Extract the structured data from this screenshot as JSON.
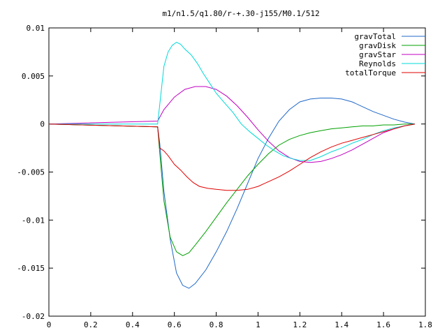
{
  "chart_data": {
    "type": "line",
    "title": "m1/n1.5/q1.80/r-+.30-j155/M0.1/512",
    "xlabel": "",
    "ylabel": "",
    "xlim": [
      0,
      1.8
    ],
    "ylim": [
      -0.02,
      0.01
    ],
    "grid": false,
    "legend_position": "top-right",
    "x_ticks": [
      "0",
      "0.2",
      "0.4",
      "0.6",
      "0.8",
      "1",
      "1.2",
      "1.4",
      "1.6",
      "1.8"
    ],
    "y_ticks": [
      "0.01",
      "0.005",
      "0",
      "-0.005",
      "-0.01",
      "-0.015",
      "-0.02"
    ],
    "series": [
      {
        "name": "gravTotal",
        "color": "#1f68c8",
        "x": [
          0.52,
          0.53,
          0.55,
          0.58,
          0.61,
          0.64,
          0.67,
          0.7,
          0.75,
          0.8,
          0.85,
          0.9,
          0.95,
          1.0,
          1.05,
          1.1,
          1.15,
          1.2,
          1.25,
          1.3,
          1.35,
          1.4,
          1.45,
          1.5,
          1.55,
          1.6,
          1.65,
          1.7,
          1.75
        ],
        "y": [
          -0.0003,
          -0.002,
          -0.007,
          -0.012,
          -0.0155,
          -0.0168,
          -0.0171,
          -0.0166,
          -0.0152,
          -0.0133,
          -0.0112,
          -0.0088,
          -0.0062,
          -0.0036,
          -0.0015,
          0.0003,
          0.0015,
          0.0023,
          0.0026,
          0.0027,
          0.0027,
          0.0026,
          0.0023,
          0.0018,
          0.0013,
          0.0009,
          0.0005,
          0.0002,
          0.0
        ]
      },
      {
        "name": "gravDisk",
        "color": "#00a000",
        "x": [
          0.52,
          0.53,
          0.55,
          0.58,
          0.61,
          0.64,
          0.67,
          0.7,
          0.75,
          0.8,
          0.85,
          0.9,
          0.95,
          1.0,
          1.05,
          1.1,
          1.15,
          1.2,
          1.25,
          1.3,
          1.35,
          1.4,
          1.45,
          1.5,
          1.55,
          1.6,
          1.65,
          1.7,
          1.75
        ],
        "y": [
          -0.0003,
          -0.003,
          -0.008,
          -0.0118,
          -0.0133,
          -0.0137,
          -0.0134,
          -0.0126,
          -0.0112,
          -0.0097,
          -0.0082,
          -0.0068,
          -0.0054,
          -0.0042,
          -0.0031,
          -0.0022,
          -0.0016,
          -0.0012,
          -0.0009,
          -0.0007,
          -0.0005,
          -0.0004,
          -0.0003,
          -0.0002,
          -0.0002,
          -0.0001,
          -0.0001,
          0.0,
          0.0
        ]
      },
      {
        "name": "gravStar",
        "color": "#c000c0",
        "x": [
          0.52,
          0.55,
          0.6,
          0.65,
          0.7,
          0.75,
          0.8,
          0.85,
          0.9,
          0.95,
          1.0,
          1.05,
          1.1,
          1.15,
          1.2,
          1.25,
          1.3,
          1.35,
          1.4,
          1.45,
          1.5,
          1.55,
          1.6,
          1.65,
          1.7,
          1.75
        ],
        "y": [
          0.0003,
          0.0015,
          0.0028,
          0.0036,
          0.0039,
          0.0039,
          0.0036,
          0.0029,
          0.0019,
          0.0007,
          -0.0006,
          -0.0018,
          -0.0028,
          -0.0035,
          -0.0039,
          -0.004,
          -0.0039,
          -0.0036,
          -0.0032,
          -0.0027,
          -0.0021,
          -0.0015,
          -0.0009,
          -0.0005,
          -0.0002,
          0.0
        ]
      },
      {
        "name": "Reynolds",
        "color": "#00d8d8",
        "x": [
          0.52,
          0.53,
          0.55,
          0.57,
          0.59,
          0.61,
          0.63,
          0.65,
          0.68,
          0.71,
          0.74,
          0.77,
          0.8,
          0.84,
          0.88,
          0.92,
          0.96,
          1.0,
          1.04,
          1.08,
          1.12,
          1.16,
          1.2,
          1.25,
          1.3,
          1.35,
          1.4,
          1.45,
          1.5,
          1.55,
          1.6,
          1.65,
          1.7,
          1.75
        ],
        "y": [
          0.0,
          0.002,
          0.006,
          0.0075,
          0.0082,
          0.0085,
          0.0083,
          0.0078,
          0.0072,
          0.0063,
          0.0052,
          0.0042,
          0.0032,
          0.0022,
          0.0012,
          0.0,
          -0.0008,
          -0.0015,
          -0.0022,
          -0.0028,
          -0.0033,
          -0.0036,
          -0.0038,
          -0.0038,
          -0.0034,
          -0.0029,
          -0.0025,
          -0.002,
          -0.0016,
          -0.0011,
          -0.0007,
          -0.0004,
          -0.0002,
          0.0
        ]
      },
      {
        "name": "totalTorque",
        "color": "#e00000",
        "x": [
          0.52,
          0.53,
          0.55,
          0.57,
          0.6,
          0.63,
          0.66,
          0.69,
          0.72,
          0.76,
          0.8,
          0.85,
          0.9,
          0.95,
          1.0,
          1.05,
          1.1,
          1.15,
          1.2,
          1.25,
          1.3,
          1.35,
          1.4,
          1.45,
          1.5,
          1.55,
          1.6,
          1.65,
          1.7,
          1.75
        ],
        "y": [
          -0.0003,
          -0.0025,
          -0.0028,
          -0.0033,
          -0.0042,
          -0.0048,
          -0.0055,
          -0.0061,
          -0.0065,
          -0.0067,
          -0.0068,
          -0.0069,
          -0.0069,
          -0.0068,
          -0.0065,
          -0.006,
          -0.0055,
          -0.0049,
          -0.0042,
          -0.0035,
          -0.0029,
          -0.0024,
          -0.002,
          -0.0017,
          -0.0014,
          -0.0011,
          -0.0008,
          -0.0005,
          -0.0002,
          0.0
        ]
      }
    ]
  }
}
